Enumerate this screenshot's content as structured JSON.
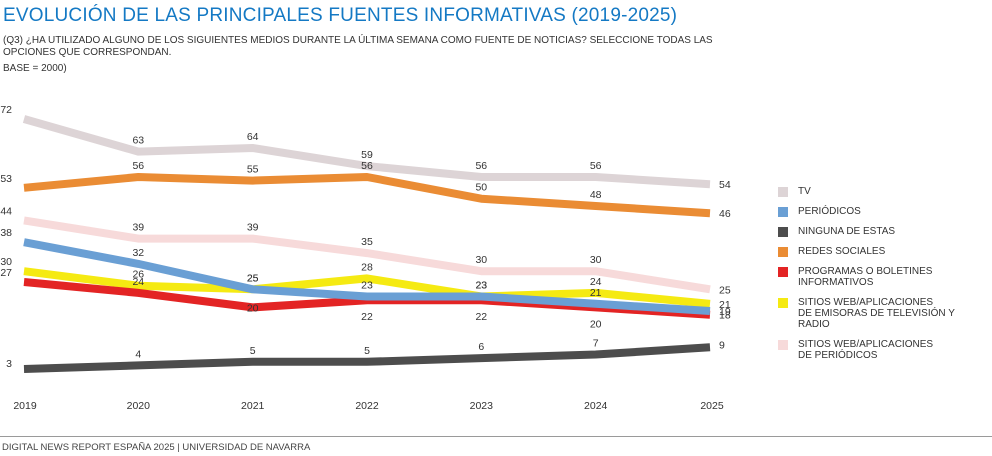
{
  "header": {
    "title": "EVOLUCIÓN DE LAS PRINCIPALES FUENTES INFORMATIVAS (2019-2025)",
    "question": "(Q3) ¿Ha utilizado alguno de los siguientes medios durante la última semana como fuente de noticias? Seleccione todas las opciones que correspondan.",
    "base": "BASE = 2000)"
  },
  "footer": {
    "source": "DIGITAL NEWS REPORT ESPAÑA 2025 | UNIVERSIDAD DE NAVARRA"
  },
  "chart_data": {
    "type": "line",
    "title": "EVOLUCIÓN DE LAS PRINCIPALES FUENTES INFORMATIVAS (2019-2025)",
    "xlabel": "",
    "ylabel": "",
    "x": [
      "2019",
      "2020",
      "2021",
      "2022",
      "2023",
      "2024",
      "2025"
    ],
    "ylim": [
      0,
      80
    ],
    "grid": false,
    "legend_position": "right",
    "series": [
      {
        "name": "TV",
        "color": "#ddd4d6",
        "values": [
          72,
          63,
          64,
          59,
          56,
          56,
          54
        ]
      },
      {
        "name": "PERIÓDICOS",
        "color": "#6a9fd4",
        "values": [
          38,
          32,
          25,
          23,
          23,
          21,
          19
        ]
      },
      {
        "name": "NINGUNA DE ESTAS",
        "color": "#4d4d4d",
        "values": [
          3,
          4,
          5,
          5,
          6,
          7,
          9
        ]
      },
      {
        "name": "REDES SOCIALES",
        "color": "#ea8c34",
        "values": [
          53,
          56,
          55,
          56,
          50,
          48,
          46
        ]
      },
      {
        "name": "PROGRAMAS O BOLETINES INFORMATIVOS",
        "color": "#e32424",
        "values": [
          27,
          24,
          20,
          22,
          22,
          20,
          18
        ]
      },
      {
        "name": "SITIOS WEB/APLICACIONES DE EMISORAS DE TELEVISIÓN Y RADIO",
        "color": "#f5ea12",
        "values": [
          30,
          26,
          25,
          28,
          23,
          24,
          21
        ]
      },
      {
        "name": "SITIOS WEB/APLICACIONES DE PERIÓDICOS",
        "color": "#f7dada",
        "values": [
          44,
          39,
          39,
          35,
          30,
          30,
          25
        ]
      }
    ],
    "legend_lines": [
      [
        "TV"
      ],
      [
        "PERIÓDICOS"
      ],
      [
        "NINGUNA DE ESTAS"
      ],
      [
        "REDES SOCIALES"
      ],
      [
        "PROGRAMAS O BOLETINES",
        "INFORMATIVOS"
      ],
      [
        "SITIOS WEB/APLICACIONES",
        "DE EMISORAS DE TELEVISIÓN Y RADIO"
      ],
      [
        "SITIOS WEB/APLICACIONES",
        "DE PERIÓDICOS"
      ]
    ]
  }
}
